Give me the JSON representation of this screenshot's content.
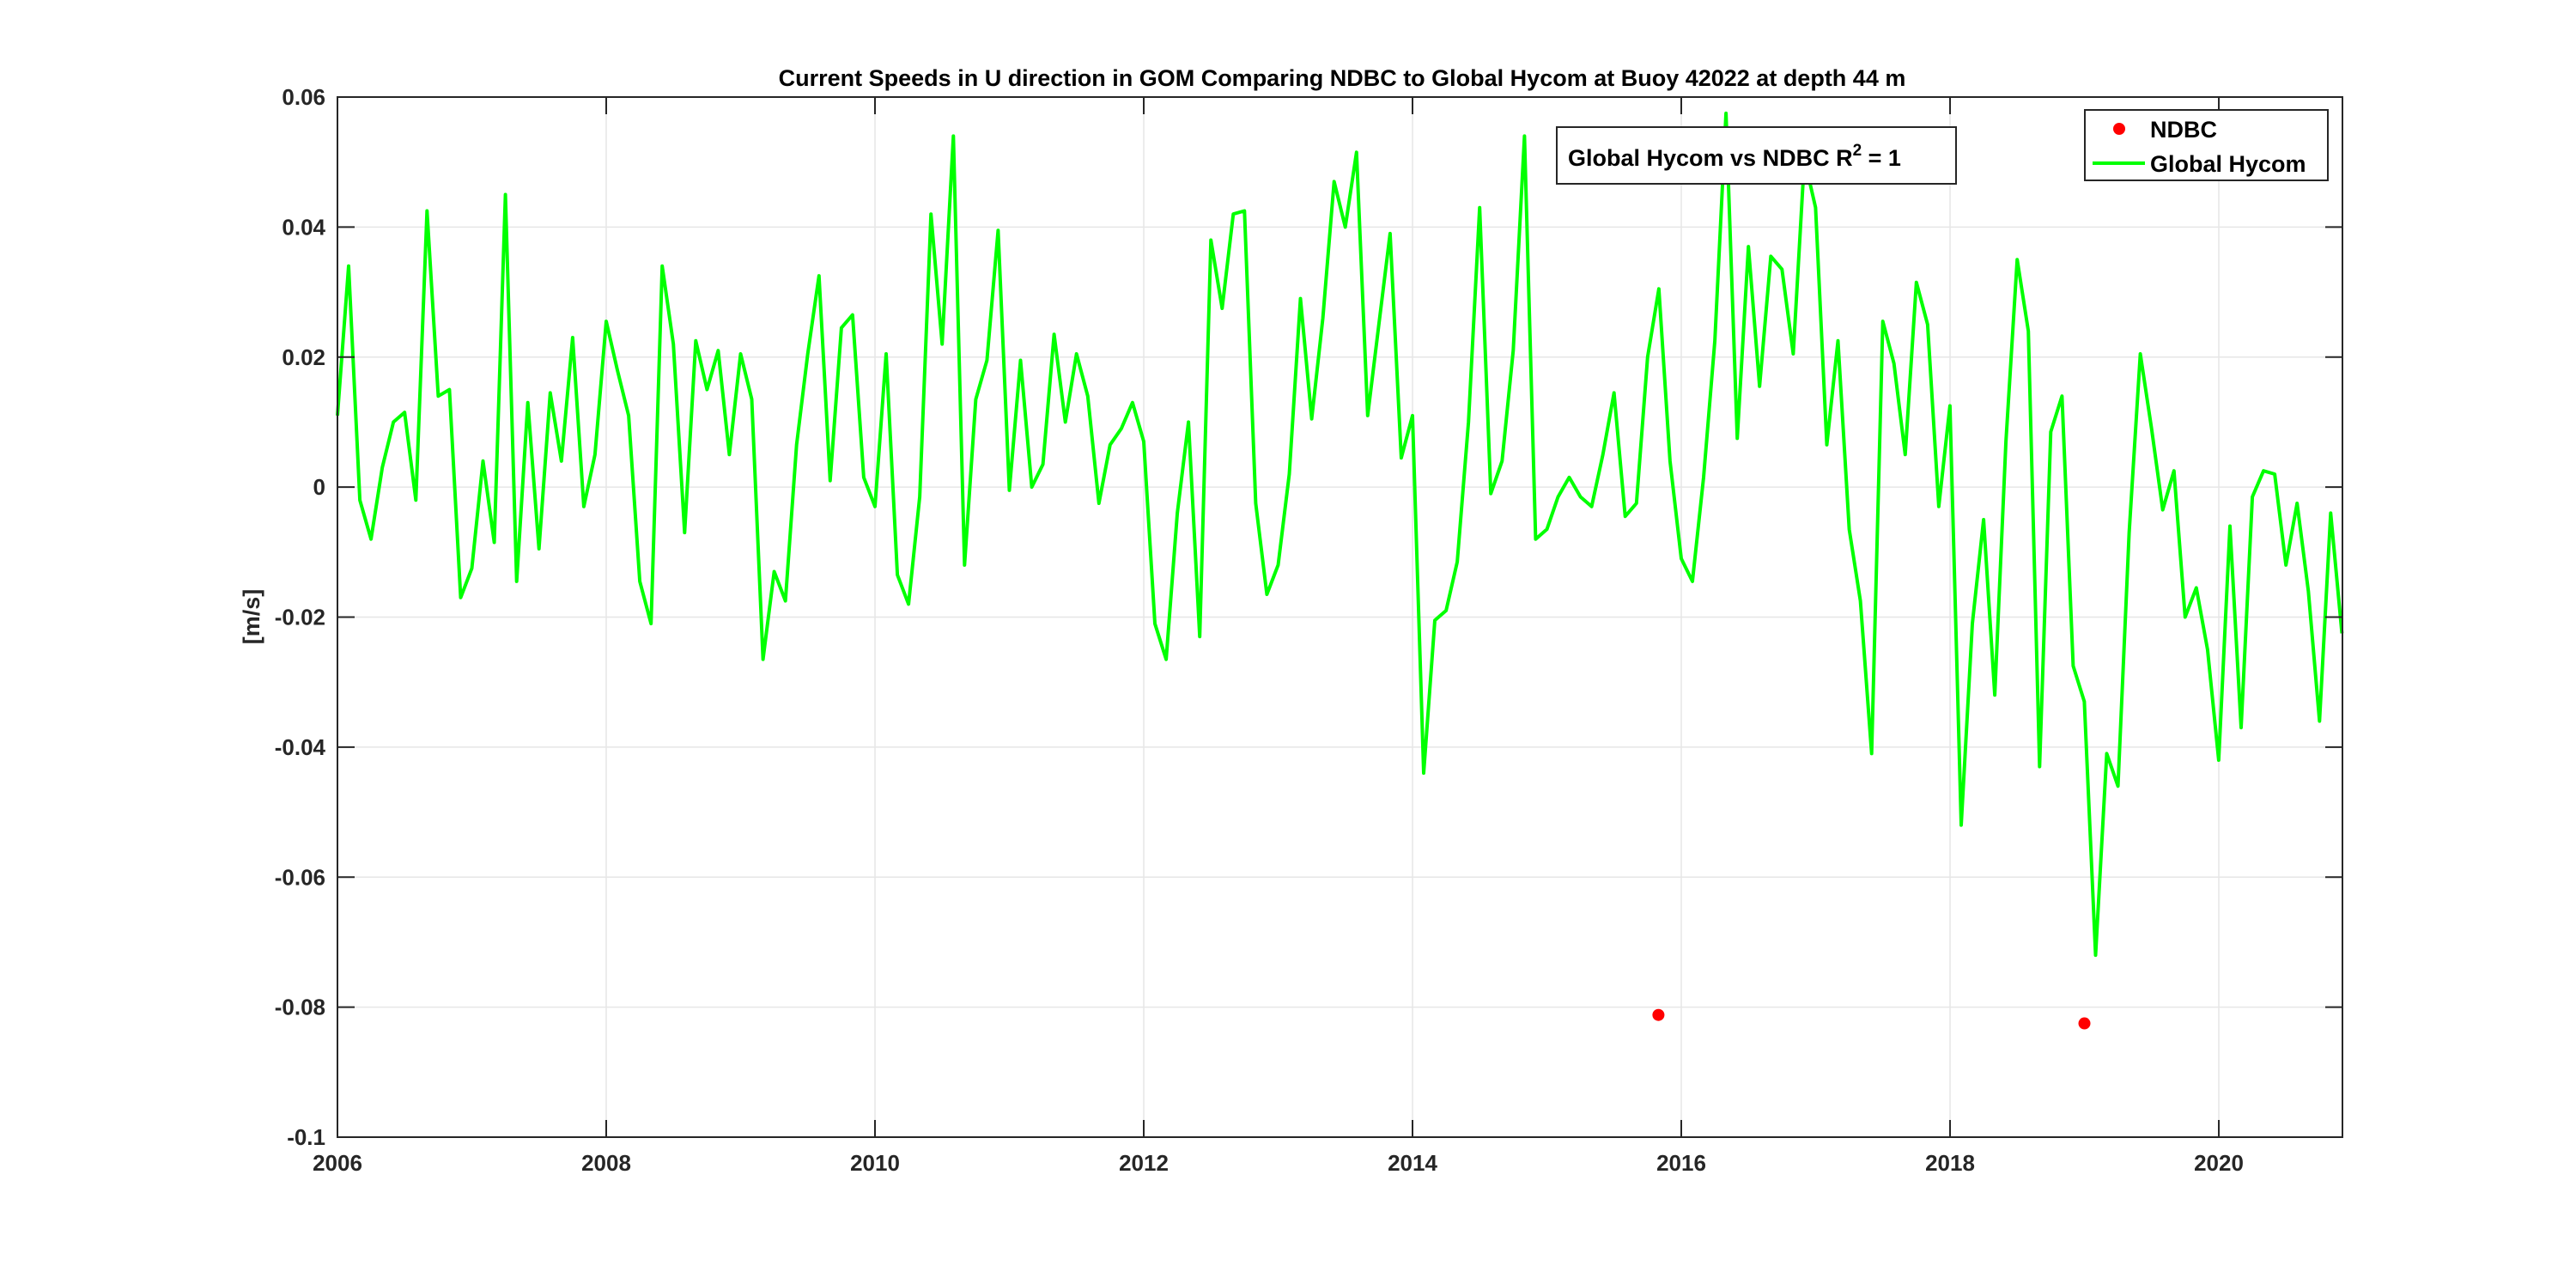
{
  "chart_data": {
    "type": "line",
    "title": "Current Speeds in U direction in GOM Comparing NDBC to Global Hycom at Buoy  42022  at depth  44 m",
    "xlabel": "",
    "ylabel": "[m/s]",
    "xlim": [
      2006.0,
      2020.92
    ],
    "ylim": [
      -0.1,
      0.06
    ],
    "xticks": [
      2006,
      2008,
      2010,
      2012,
      2014,
      2016,
      2018,
      2020
    ],
    "xtick_labels": [
      "2006",
      "2008",
      "2010",
      "2012",
      "2014",
      "2016",
      "2018",
      "2020"
    ],
    "yticks": [
      0.06,
      0.04,
      0.02,
      0,
      -0.02,
      -0.04,
      -0.06,
      -0.08,
      -0.1
    ],
    "ytick_labels": [
      "0.06",
      "0.04",
      "0.02",
      "0",
      "-0.02",
      "-0.04",
      "-0.06",
      "-0.08",
      "-0.1"
    ],
    "grid": true,
    "legend_position": "top-right",
    "annotation": {
      "prefix": "Global Hycom vs NDBC R",
      "superscript": "2",
      "suffix": " = 1"
    },
    "series": [
      {
        "name": "NDBC",
        "type": "scatter",
        "color": "#ff0000",
        "points": [
          [
            2015.83,
            -0.0812
          ],
          [
            2019.0,
            -0.0825
          ]
        ]
      },
      {
        "name": "Global Hycom",
        "type": "line",
        "color": "#00ff00",
        "x_start": 2006.0,
        "x_step": 0.08333,
        "values": [
          0.011,
          0.034,
          -0.002,
          -0.008,
          0.003,
          0.01,
          0.0115,
          -0.002,
          0.0425,
          0.014,
          0.015,
          -0.017,
          -0.0125,
          0.004,
          -0.0085,
          0.045,
          -0.0145,
          0.013,
          -0.0095,
          0.0145,
          0.004,
          0.023,
          -0.003,
          0.005,
          0.0255,
          0.018,
          0.011,
          -0.0145,
          -0.021,
          0.034,
          0.022,
          -0.007,
          0.0225,
          0.015,
          0.021,
          0.005,
          0.0205,
          0.0135,
          -0.0265,
          -0.013,
          -0.0175,
          0.0065,
          0.0205,
          0.0325,
          0.001,
          0.0245,
          0.0265,
          0.0015,
          -0.003,
          0.0205,
          -0.0135,
          -0.018,
          -0.0015,
          0.042,
          0.022,
          0.054,
          -0.012,
          0.0135,
          0.0195,
          0.0395,
          -0.0005,
          0.0195,
          0.0,
          0.0035,
          0.0235,
          0.01,
          0.0205,
          0.014,
          -0.0025,
          0.0065,
          0.009,
          0.013,
          0.007,
          -0.021,
          -0.0265,
          -0.004,
          0.01,
          -0.023,
          0.038,
          0.0275,
          0.042,
          0.0425,
          -0.0025,
          -0.0165,
          -0.012,
          0.002,
          0.029,
          0.0105,
          0.026,
          0.047,
          0.04,
          0.0515,
          0.011,
          0.025,
          0.039,
          0.0045,
          0.011,
          -0.044,
          -0.0205,
          -0.019,
          -0.0115,
          0.01,
          0.043,
          -0.001,
          0.004,
          0.021,
          0.054,
          -0.008,
          -0.0065,
          -0.0015,
          0.0015,
          -0.0015,
          -0.003,
          0.005,
          0.0145,
          -0.0045,
          -0.0025,
          0.02,
          0.0305,
          0.004,
          -0.011,
          -0.0145,
          0.0015,
          0.0225,
          0.0575,
          0.0075,
          0.037,
          0.0155,
          0.0355,
          0.0335,
          0.0205,
          0.0505,
          0.043,
          0.0065,
          0.0225,
          -0.0065,
          -0.0175,
          -0.041,
          0.0255,
          0.019,
          0.005,
          0.0315,
          0.025,
          -0.003,
          0.0125,
          -0.052,
          -0.021,
          -0.005,
          -0.032,
          0.007,
          0.035,
          0.024,
          -0.043,
          0.0085,
          0.014,
          -0.0275,
          -0.033,
          -0.072,
          -0.041,
          -0.046,
          -0.007,
          0.0205,
          0.009,
          -0.0035,
          0.0025,
          -0.02,
          -0.0155,
          -0.025,
          -0.042,
          -0.006,
          -0.037,
          -0.0015,
          0.0025,
          0.002,
          -0.012,
          -0.0025,
          -0.016,
          -0.036,
          -0.004,
          -0.0225
        ]
      }
    ]
  }
}
